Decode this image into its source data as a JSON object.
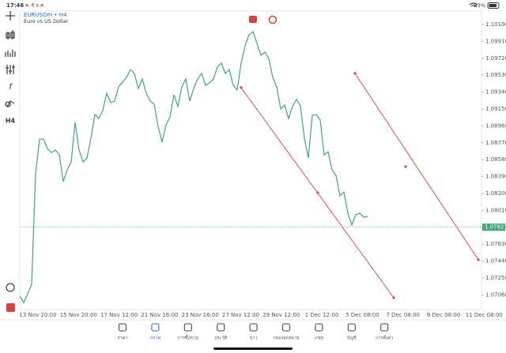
{
  "status": {
    "time": "17:46",
    "date": "พ. 6 ธ.ค.",
    "battery": "83%"
  },
  "chart": {
    "type": "line",
    "symbol": "EURUSDm • H4",
    "description": "Euro vs US Dollar",
    "color": "#3aa87a",
    "values": [
      1.07045,
      1.06974,
      1.07072,
      1.07178,
      1.08422,
      1.08812,
      1.08812,
      1.08706,
      1.08661,
      1.08688,
      1.08635,
      1.08333,
      1.08466,
      1.08555,
      1.08999,
      1.08688,
      1.08555,
      1.08599,
      1.08821,
      1.09088,
      1.09043,
      1.09132,
      1.09327,
      1.09221,
      1.09239,
      1.09399,
      1.09452,
      1.09505,
      1.09594,
      1.09549,
      1.09381,
      1.09487,
      1.09327,
      1.09239,
      1.09203,
      1.08955,
      1.08777,
      1.08972,
      1.09061,
      1.0931,
      1.09177,
      1.09399,
      1.09487,
      1.09239,
      1.09381,
      1.09487,
      1.09549,
      1.09416,
      1.09443,
      1.09487,
      1.09621,
      1.09665,
      1.09549,
      1.09594,
      1.09416,
      1.09363,
      1.09665,
      1.0986,
      1.09985,
      1.1002,
      1.09887,
      1.09754,
      1.09789,
      1.09718,
      1.09505,
      1.09399,
      1.0915,
      1.09194,
      1.09043,
      1.09177,
      1.09256,
      1.09185,
      1.08821,
      1.08599,
      1.09079,
      1.09088,
      1.09026,
      1.08635,
      1.0867,
      1.08466,
      1.08404,
      1.08173,
      1.08217,
      1.07978,
      1.07845,
      1.0796,
      1.07978,
      1.07933,
      1.07942
    ],
    "ylim": [
      1.06895,
      1.10251
    ],
    "yticks": [
      {
        "value": 1.101,
        "label": "1.10100"
      },
      {
        "value": 1.0991,
        "label": "1.09910"
      },
      {
        "value": 1.0972,
        "label": "1.09720"
      },
      {
        "value": 1.0953,
        "label": "1.09530"
      },
      {
        "value": 1.0934,
        "label": "1.09340"
      },
      {
        "value": 1.0915,
        "label": "1.09150"
      },
      {
        "value": 1.0896,
        "label": "1.08960"
      },
      {
        "value": 1.0877,
        "label": "1.08770"
      },
      {
        "value": 1.0858,
        "label": "1.08580"
      },
      {
        "value": 1.0839,
        "label": "1.08390"
      },
      {
        "value": 1.082,
        "label": "1.08200"
      },
      {
        "value": 1.0801,
        "label": "1.08010"
      },
      {
        "value": 1.0782,
        "label": "1.07820"
      },
      {
        "value": 1.0763,
        "label": "1.07630"
      },
      {
        "value": 1.0744,
        "label": "1.07440"
      },
      {
        "value": 1.0725,
        "label": "1.07250"
      },
      {
        "value": 1.0706,
        "label": "1.07060"
      }
    ],
    "current_price": 1.07821,
    "x_labels": [
      "13 Nov 20:00",
      "15 Nov 20:00",
      "17 Nov 12:00",
      "21 Nov 16:00",
      "23 Nov 16:00",
      "27 Nov 12:00",
      "29 Nov 12:00",
      "1 Dec 12:00",
      "5 Dec 08:00",
      "7 Dec 08:00",
      "9 Dec 08:00",
      "11 Dec 08:00"
    ],
    "toolbar_timeframe": "H4"
  },
  "nav": {
    "active": 1,
    "items": [
      "ราคา",
      "กราฟ",
      "การซื้อขาย",
      "ประวัติ",
      "ข่าว",
      "กล่องจดหมาย",
      "แชท",
      "บัญชี",
      "การตั้งค่า"
    ]
  }
}
